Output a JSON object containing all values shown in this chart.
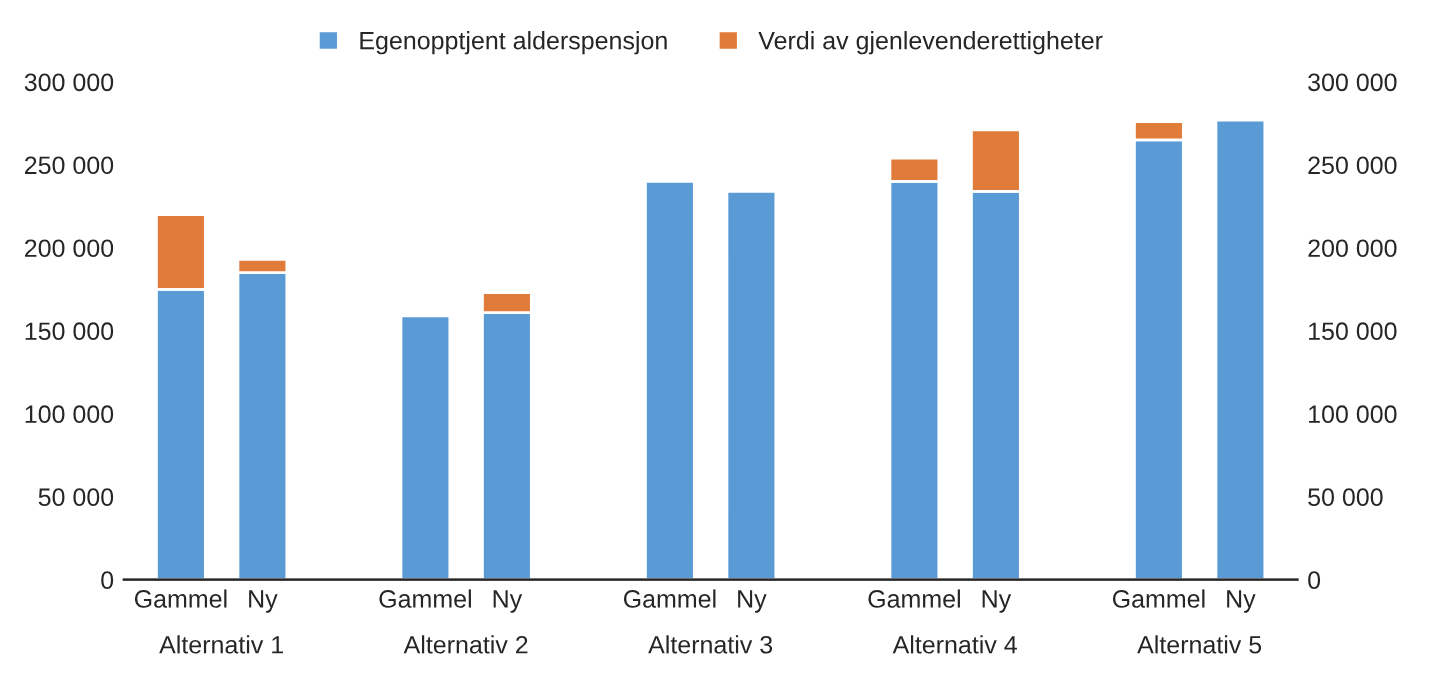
{
  "chart_data": {
    "type": "bar",
    "stacked": true,
    "categories": [
      "Gammel",
      "Ny",
      null,
      "Gammel",
      "Ny",
      null,
      "Gammel",
      "Ny",
      null,
      "Gammel",
      "Ny",
      null,
      "Gammel",
      "Ny"
    ],
    "series": [
      {
        "name": "Egenopptjent alderspensjon",
        "color": "#5b9bd5",
        "values": [
          175000,
          185000,
          null,
          159000,
          161000,
          null,
          240000,
          234000,
          null,
          240000,
          234000,
          null,
          265000,
          277000
        ]
      },
      {
        "name": "Verdi av gjenlevenderettigheter",
        "color": "#e07b39",
        "values": [
          45000,
          8000,
          null,
          null,
          12000,
          null,
          null,
          null,
          null,
          14000,
          37000,
          null,
          11000,
          null
        ]
      }
    ],
    "annotations": [
      "Alternativ 1",
      "Alternativ 2",
      "Alternativ 3",
      "Alternativ 4",
      "Alternativ 5"
    ],
    "ylim": [
      0,
      300000
    ],
    "yticks": [
      0,
      {
        "value": 50000,
        "label": "50 000"
      },
      {
        "value": 100000,
        "label": "100 000"
      },
      {
        "value": 150000,
        "label": "150 000"
      },
      {
        "value": 200000,
        "label": "200 000"
      },
      {
        "value": 250000,
        "label": "250 000"
      },
      {
        "value": 300000,
        "label": "300 000"
      }
    ],
    "y2lim": [
      0,
      300000
    ],
    "y2ticks": [
      0,
      {
        "value": 50000,
        "label": "50 000"
      },
      {
        "value": 100000,
        "label": "100 000"
      },
      {
        "value": 150000,
        "label": "150 000"
      },
      {
        "value": 200000,
        "label": "200 000"
      },
      {
        "value": 250000,
        "label": "250 000"
      },
      {
        "value": 300000,
        "label": "300 000"
      }
    ],
    "legend": "top",
    "grid": false
  }
}
